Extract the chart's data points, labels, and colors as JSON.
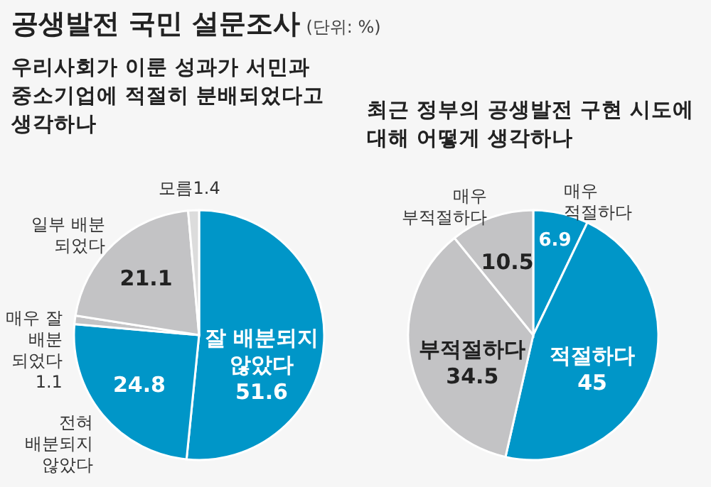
{
  "chart_data": [
    {
      "type": "pie",
      "title": "공생발전 국민 설문조사",
      "subtitle": "우리사회가 이룬 성과가 서민과 중소기업에 적절히 분배되었다고 생각하나",
      "annotations": [
        "(단위: %)"
      ],
      "categories": [
        "잘 배분되지\n않았다",
        "전혀\n배분되지\n않았다",
        "매우 잘\n배분\n되었다",
        "일부 배분\n되었다",
        "모름"
      ],
      "values": [
        51.6,
        24.8,
        1.1,
        21.1,
        1.4
      ],
      "colors": [
        "#0096c8",
        "#0096c8",
        "#c3c3c5",
        "#c3c3c5",
        "#dcdcdc"
      ],
      "data_labels": true
    },
    {
      "type": "pie",
      "title": "최근 정부의 공생발전 구현 시도에 대해 어떻게 생각하나",
      "categories": [
        "매우\n적절하다",
        "적절하다",
        "부적절하다",
        "매우\n부적절하다"
      ],
      "values": [
        6.9,
        45,
        34.5,
        10.5
      ],
      "colors": [
        "#0096c8",
        "#0096c8",
        "#c3c3c5",
        "#c3c3c5"
      ],
      "data_labels": true
    }
  ]
}
